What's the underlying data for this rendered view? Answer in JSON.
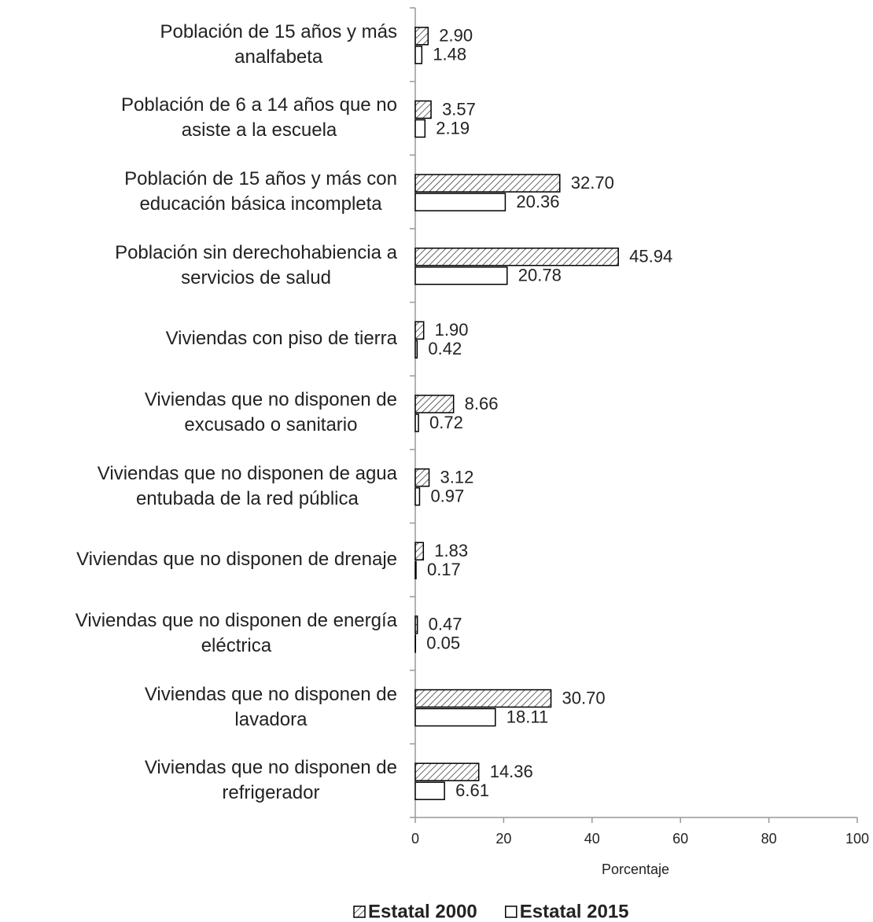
{
  "chart_data": {
    "type": "barh",
    "categories": [
      "Población de 15 años y más\nanalfabeta",
      "Población de 6 a 14 años que no\nasiste a la escuela",
      "Población de 15 años y más con\neducación básica incompleta",
      "Población sin derechohabiencia a\nservicios de salud",
      "Viviendas con piso de tierra",
      "Viviendas que no disponen de\nexcusado o sanitario",
      "Viviendas que no disponen de agua\nentubada de la red pública",
      "Viviendas que no disponen de drenaje",
      "Viviendas que no disponen de energía\neléctrica",
      "Viviendas que no disponen de\nlavadora",
      "Viviendas que no disponen de\nrefrigerador"
    ],
    "series": [
      {
        "name": "Estatal 2000",
        "color": "#000000",
        "pattern": "hatch",
        "values": [
          2.9,
          3.57,
          32.7,
          45.94,
          1.9,
          8.66,
          3.12,
          1.83,
          0.47,
          30.7,
          14.36
        ],
        "value_labels": [
          "2.90",
          "3.57",
          "32.70",
          "45.94",
          "1.90",
          "8.66",
          "3.12",
          "1.83",
          "0.47",
          "30.70",
          "14.36"
        ]
      },
      {
        "name": "Estatal 2015",
        "color": "#000000",
        "pattern": "none",
        "values": [
          1.48,
          2.19,
          20.36,
          20.78,
          0.42,
          0.72,
          0.97,
          0.17,
          0.05,
          18.11,
          6.61
        ],
        "value_labels": [
          "1.48",
          "2.19",
          "20.36",
          "20.78",
          "0.42",
          "0.72",
          "0.97",
          "0.17",
          "0.05",
          "18.11",
          "6.61"
        ]
      }
    ],
    "xlabel": "Porcentaje",
    "xlim": [
      0,
      100
    ],
    "xticks": [
      0,
      20,
      40,
      60,
      80,
      100
    ],
    "legend": "bottom"
  }
}
